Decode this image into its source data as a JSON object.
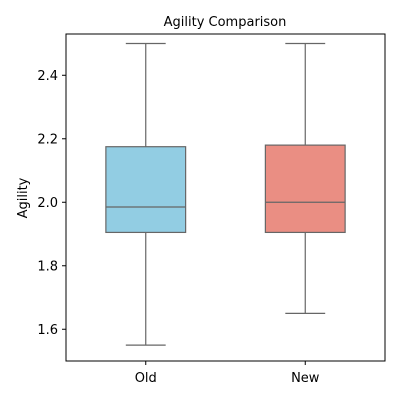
{
  "chart_data": {
    "type": "box",
    "title": "Agility Comparison",
    "xlabel": "",
    "ylabel": "Agility",
    "categories": [
      "Old",
      "New"
    ],
    "ylim": [
      1.5,
      2.53
    ],
    "yticks": [
      1.6,
      1.8,
      2.0,
      2.2,
      2.4
    ],
    "ytick_labels": [
      "1.6",
      "1.8",
      "2.0",
      "2.2",
      "2.4"
    ],
    "grid": false,
    "boxes": [
      {
        "category": "Old",
        "whisker_low": 1.55,
        "q1": 1.905,
        "median": 1.985,
        "q3": 2.175,
        "whisker_high": 2.5,
        "color": "#92cde3"
      },
      {
        "category": "New",
        "whisker_low": 1.65,
        "q1": 1.905,
        "median": 2.0,
        "q3": 2.18,
        "whisker_high": 2.5,
        "color": "#ea8e83"
      }
    ],
    "line_color": "#666666"
  }
}
